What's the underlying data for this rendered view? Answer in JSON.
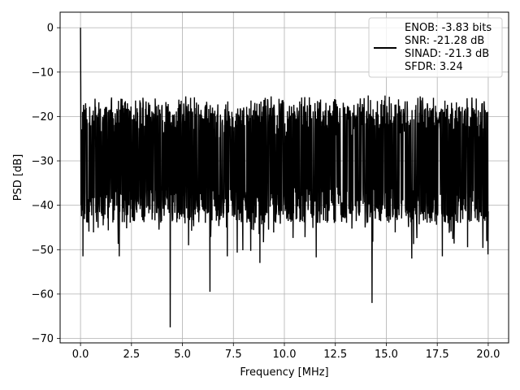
{
  "chart_data": {
    "type": "line",
    "title": "",
    "xlabel": "Frequency [MHz]",
    "ylabel": "PSD [dB]",
    "xlim": [
      -1.0,
      21.0
    ],
    "ylim": [
      -71.0,
      3.5
    ],
    "xticks": [
      0.0,
      2.5,
      5.0,
      7.5,
      10.0,
      12.5,
      15.0,
      17.5,
      20.0
    ],
    "xtick_labels": [
      "0.0",
      "2.5",
      "5.0",
      "7.5",
      "10.0",
      "12.5",
      "15.0",
      "17.5",
      "20.0"
    ],
    "yticks": [
      0,
      -10,
      -20,
      -30,
      -40,
      -50,
      -60,
      -70
    ],
    "ytick_labels": [
      "0",
      "−10",
      "−20",
      "−30",
      "−40",
      "−50",
      "−60",
      "−70"
    ],
    "grid": true,
    "legend_position": "top-right",
    "series": [
      {
        "name": "ENOB: -3.83 bits\nSNR: -21.28 dB\nSINAD: -21.3 dB\nSFDR: 3.24",
        "color": "#000000",
        "x_range": [
          0.0,
          20.0
        ],
        "peak": {
          "x": 0.0,
          "y": 0.0
        },
        "typical_upper": -18,
        "typical_lower": -40,
        "deep_dips": [
          {
            "x": 0.12,
            "y": -51.5
          },
          {
            "x": 1.9,
            "y": -51.5
          },
          {
            "x": 4.4,
            "y": -67.5
          },
          {
            "x": 6.35,
            "y": -59.5
          },
          {
            "x": 7.2,
            "y": -51.5
          },
          {
            "x": 8.8,
            "y": -53.0
          },
          {
            "x": 14.3,
            "y": -62.0
          },
          {
            "x": 16.25,
            "y": -52.0
          },
          {
            "x": 17.75,
            "y": -51.5
          }
        ]
      }
    ]
  }
}
